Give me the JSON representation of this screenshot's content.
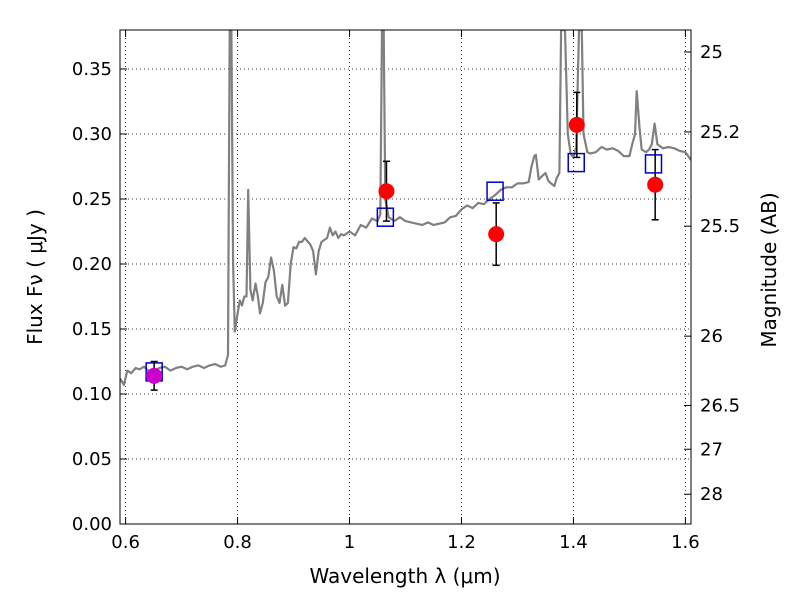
{
  "chart_data": {
    "type": "scatter",
    "title": "",
    "xlabel": "Wavelength  λ (μm)",
    "ylabel": "Flux  Fν  ( μJy )",
    "ylabel_right": "Magnitude (AB)",
    "xlim": [
      0.59,
      1.61
    ],
    "ylim": [
      0.0,
      0.38
    ],
    "grid": true,
    "x_ticks": [
      {
        "value": 0.6,
        "label": "0.6"
      },
      {
        "value": 0.8,
        "label": "0.8"
      },
      {
        "value": 1.0,
        "label": "1"
      },
      {
        "value": 1.2,
        "label": "1.2"
      },
      {
        "value": 1.4,
        "label": "1.4"
      },
      {
        "value": 1.6,
        "label": "1.6"
      }
    ],
    "y_ticks": [
      {
        "value": 0.0,
        "label": "0.00"
      },
      {
        "value": 0.05,
        "label": "0.05"
      },
      {
        "value": 0.1,
        "label": "0.10"
      },
      {
        "value": 0.15,
        "label": "0.15"
      },
      {
        "value": 0.2,
        "label": "0.20"
      },
      {
        "value": 0.25,
        "label": "0.25"
      },
      {
        "value": 0.3,
        "label": "0.30"
      },
      {
        "value": 0.35,
        "label": "0.35"
      }
    ],
    "right_ticks": [
      {
        "flux": 0.3631,
        "label": "25"
      },
      {
        "flux": 0.3016,
        "label": "25.2"
      },
      {
        "flux": 0.2291,
        "label": "25.5"
      },
      {
        "flux": 0.1445,
        "label": "26"
      },
      {
        "flux": 0.0912,
        "label": "26.5"
      },
      {
        "flux": 0.0575,
        "label": "27"
      },
      {
        "flux": 0.0229,
        "label": "28"
      }
    ],
    "series": [
      {
        "style": "line",
        "color": "#808080",
        "points": [
          [
            0.59,
            0.112
          ],
          [
            0.597,
            0.107
          ],
          [
            0.603,
            0.118
          ],
          [
            0.61,
            0.116
          ],
          [
            0.618,
            0.12
          ],
          [
            0.625,
            0.119
          ],
          [
            0.633,
            0.121
          ],
          [
            0.64,
            0.118
          ],
          [
            0.65,
            0.117
          ],
          [
            0.66,
            0.12
          ],
          [
            0.67,
            0.121
          ],
          [
            0.68,
            0.118
          ],
          [
            0.69,
            0.12
          ],
          [
            0.7,
            0.121
          ],
          [
            0.71,
            0.119
          ],
          [
            0.72,
            0.121
          ],
          [
            0.73,
            0.122
          ],
          [
            0.74,
            0.12
          ],
          [
            0.75,
            0.122
          ],
          [
            0.76,
            0.123
          ],
          [
            0.77,
            0.121
          ],
          [
            0.778,
            0.122
          ],
          [
            0.783,
            0.13
          ],
          [
            0.786,
            0.38
          ],
          [
            0.789,
            0.38
          ],
          [
            0.792,
            0.2
          ],
          [
            0.795,
            0.148
          ],
          [
            0.8,
            0.162
          ],
          [
            0.804,
            0.172
          ],
          [
            0.808,
            0.168
          ],
          [
            0.812,
            0.175
          ],
          [
            0.816,
            0.175
          ],
          [
            0.819,
            0.257
          ],
          [
            0.823,
            0.18
          ],
          [
            0.827,
            0.172
          ],
          [
            0.832,
            0.185
          ],
          [
            0.836,
            0.176
          ],
          [
            0.84,
            0.162
          ],
          [
            0.845,
            0.17
          ],
          [
            0.85,
            0.186
          ],
          [
            0.855,
            0.19
          ],
          [
            0.86,
            0.205
          ],
          [
            0.865,
            0.195
          ],
          [
            0.87,
            0.175
          ],
          [
            0.875,
            0.17
          ],
          [
            0.88,
            0.184
          ],
          [
            0.885,
            0.168
          ],
          [
            0.89,
            0.17
          ],
          [
            0.895,
            0.2
          ],
          [
            0.9,
            0.213
          ],
          [
            0.905,
            0.212
          ],
          [
            0.91,
            0.217
          ],
          [
            0.915,
            0.217
          ],
          [
            0.92,
            0.22
          ],
          [
            0.93,
            0.215
          ],
          [
            0.935,
            0.21
          ],
          [
            0.94,
            0.192
          ],
          [
            0.945,
            0.21
          ],
          [
            0.95,
            0.217
          ],
          [
            0.96,
            0.22
          ],
          [
            0.965,
            0.228
          ],
          [
            0.97,
            0.222
          ],
          [
            0.975,
            0.225
          ],
          [
            0.98,
            0.22
          ],
          [
            0.985,
            0.223
          ],
          [
            0.99,
            0.222
          ],
          [
            1.0,
            0.225
          ],
          [
            1.01,
            0.222
          ],
          [
            1.02,
            0.23
          ],
          [
            1.03,
            0.228
          ],
          [
            1.04,
            0.235
          ],
          [
            1.05,
            0.233
          ],
          [
            1.055,
            0.238
          ],
          [
            1.058,
            0.38
          ],
          [
            1.061,
            0.38
          ],
          [
            1.064,
            0.25
          ],
          [
            1.07,
            0.236
          ],
          [
            1.08,
            0.233
          ],
          [
            1.09,
            0.236
          ],
          [
            1.1,
            0.233
          ],
          [
            1.11,
            0.232
          ],
          [
            1.12,
            0.231
          ],
          [
            1.13,
            0.23
          ],
          [
            1.14,
            0.232
          ],
          [
            1.15,
            0.23
          ],
          [
            1.16,
            0.231
          ],
          [
            1.17,
            0.232
          ],
          [
            1.18,
            0.236
          ],
          [
            1.19,
            0.237
          ],
          [
            1.2,
            0.242
          ],
          [
            1.21,
            0.245
          ],
          [
            1.22,
            0.243
          ],
          [
            1.23,
            0.247
          ],
          [
            1.24,
            0.246
          ],
          [
            1.25,
            0.25
          ],
          [
            1.26,
            0.253
          ],
          [
            1.27,
            0.257
          ],
          [
            1.28,
            0.259
          ],
          [
            1.29,
            0.259
          ],
          [
            1.3,
            0.262
          ],
          [
            1.31,
            0.262
          ],
          [
            1.32,
            0.263
          ],
          [
            1.325,
            0.275
          ],
          [
            1.33,
            0.283
          ],
          [
            1.333,
            0.284
          ],
          [
            1.338,
            0.265
          ],
          [
            1.345,
            0.268
          ],
          [
            1.35,
            0.27
          ],
          [
            1.355,
            0.264
          ],
          [
            1.36,
            0.262
          ],
          [
            1.366,
            0.26
          ],
          [
            1.37,
            0.266
          ],
          [
            1.375,
            0.27
          ],
          [
            1.378,
            0.38
          ],
          [
            1.385,
            0.38
          ],
          [
            1.39,
            0.3
          ],
          [
            1.395,
            0.285
          ],
          [
            1.4,
            0.282
          ],
          [
            1.405,
            0.29
          ],
          [
            1.41,
            0.38
          ],
          [
            1.415,
            0.38
          ],
          [
            1.418,
            0.3
          ],
          [
            1.425,
            0.286
          ],
          [
            1.43,
            0.285
          ],
          [
            1.44,
            0.286
          ],
          [
            1.45,
            0.29
          ],
          [
            1.46,
            0.288
          ],
          [
            1.47,
            0.289
          ],
          [
            1.48,
            0.287
          ],
          [
            1.49,
            0.283
          ],
          [
            1.5,
            0.283
          ],
          [
            1.505,
            0.292
          ],
          [
            1.51,
            0.3
          ],
          [
            1.513,
            0.333
          ],
          [
            1.518,
            0.305
          ],
          [
            1.522,
            0.288
          ],
          [
            1.53,
            0.286
          ],
          [
            1.535,
            0.288
          ],
          [
            1.54,
            0.292
          ],
          [
            1.545,
            0.308
          ],
          [
            1.55,
            0.292
          ],
          [
            1.56,
            0.289
          ],
          [
            1.57,
            0.29
          ],
          [
            1.58,
            0.289
          ],
          [
            1.59,
            0.287
          ],
          [
            1.6,
            0.286
          ],
          [
            1.61,
            0.28
          ]
        ]
      },
      {
        "style": "open-square",
        "color": "#0000cc",
        "points": [
          [
            0.651,
            0.117
          ],
          [
            1.064,
            0.236
          ],
          [
            1.26,
            0.256
          ],
          [
            1.405,
            0.278
          ],
          [
            1.543,
            0.277
          ]
        ]
      },
      {
        "style": "filled-circle",
        "color": "#ff0000",
        "points": [
          {
            "x": 1.066,
            "y": 0.256,
            "err": 0.023
          },
          {
            "x": 1.262,
            "y": 0.223,
            "err": 0.024
          },
          {
            "x": 1.406,
            "y": 0.307,
            "err": 0.025
          },
          {
            "x": 1.546,
            "y": 0.261,
            "err": 0.027
          }
        ]
      },
      {
        "style": "filled-circle",
        "color": "#cc00cc",
        "points": [
          {
            "x": 0.651,
            "y": 0.114,
            "err": 0.011
          }
        ]
      }
    ]
  }
}
